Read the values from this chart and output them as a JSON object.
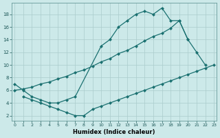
{
  "xlabel": "Humidex (Indice chaleur)",
  "bg_color": "#cce9e9",
  "grid_color": "#aacccc",
  "line_color": "#1a7070",
  "spine_color": "#669999",
  "tick_color": "#1a5555",
  "xlim": [
    -0.3,
    23.3
  ],
  "ylim": [
    1.2,
    19.8
  ],
  "xtick_vals": [
    0,
    1,
    2,
    3,
    4,
    5,
    6,
    7,
    8,
    9,
    10,
    11,
    12,
    13,
    14,
    15,
    16,
    17,
    18,
    19,
    20,
    21,
    22,
    23
  ],
  "ytick_vals": [
    2,
    4,
    6,
    8,
    10,
    12,
    14,
    16,
    18
  ],
  "line1_x": [
    0,
    1,
    2,
    3,
    4,
    5,
    6,
    7,
    10,
    11,
    12,
    13,
    14,
    15,
    16,
    17,
    18,
    19,
    20
  ],
  "line1_y": [
    7,
    6,
    5,
    4.5,
    4,
    4,
    4.5,
    5,
    13,
    14,
    16,
    17,
    18,
    18.5,
    18,
    19,
    17,
    17,
    14
  ],
  "line2_x": [
    0,
    1,
    2,
    3,
    4,
    5,
    6,
    7,
    8,
    9,
    10,
    11,
    12,
    13,
    14,
    15,
    16,
    17,
    18,
    19,
    20,
    21,
    22
  ],
  "line2_y": [
    6,
    6.2,
    6.5,
    7,
    7.3,
    7.8,
    8.2,
    8.8,
    9.2,
    9.8,
    10.5,
    11,
    11.8,
    12.3,
    13,
    13.8,
    14.5,
    15,
    15.8,
    17,
    14,
    12,
    10
  ],
  "line3_x": [
    1,
    2,
    3,
    4,
    5,
    6,
    7,
    8,
    9,
    10,
    11,
    12,
    13,
    14,
    15,
    16,
    17,
    18,
    19,
    20,
    21,
    22,
    23
  ],
  "line3_y": [
    5,
    4.5,
    4,
    3.5,
    3,
    2.5,
    2,
    2,
    3,
    3.5,
    4,
    4.5,
    5,
    5.5,
    6,
    6.5,
    7,
    7.5,
    8,
    8.5,
    9,
    9.5,
    10
  ],
  "markersize": 2.5,
  "linewidth": 0.9
}
